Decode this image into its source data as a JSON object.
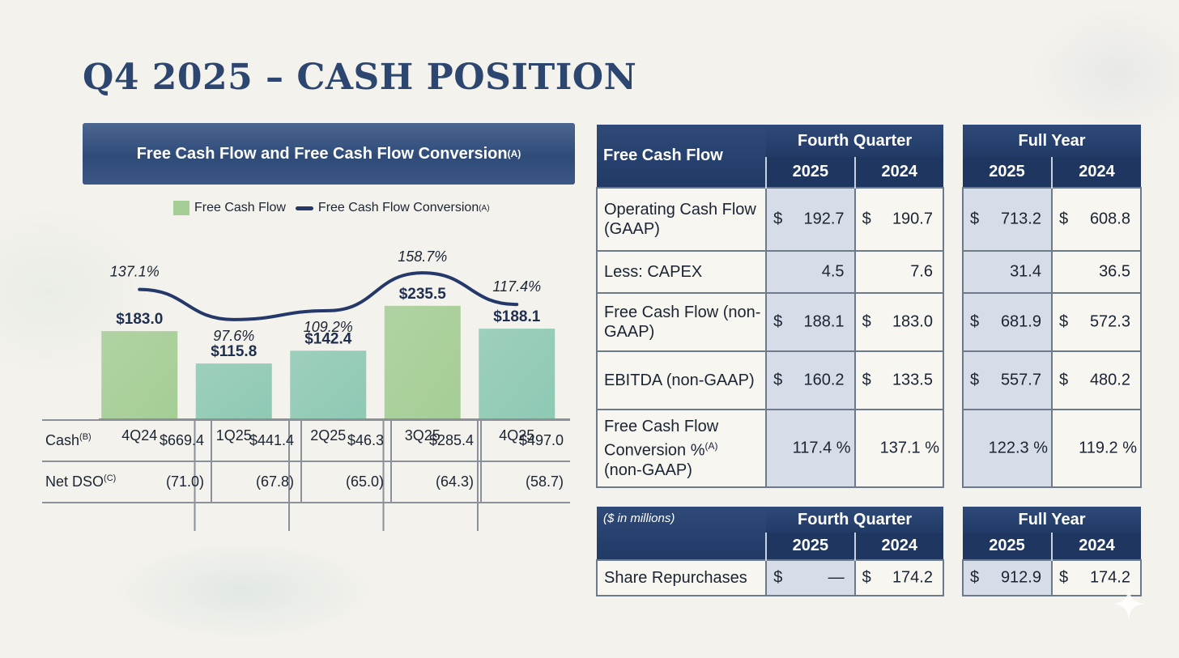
{
  "title": "Q4 2025 – CASH POSITION",
  "colors": {
    "bar": "#a5cd96",
    "bar_alt": "#8ec9b4",
    "line": "#24396a",
    "header": "#24406c"
  },
  "chart_data": {
    "type": "bar",
    "title": "Free Cash Flow and Free Cash Flow Conversion",
    "title_superscript": "(A)",
    "categories": [
      "4Q24",
      "1Q25",
      "2Q25",
      "3Q25",
      "4Q25"
    ],
    "series": [
      {
        "name": "Free Cash Flow",
        "type": "bar",
        "values": [
          183.0,
          115.8,
          142.4,
          235.5,
          188.1
        ],
        "labels": [
          "$183.0",
          "$115.8",
          "$142.4",
          "$235.5",
          "$188.1"
        ]
      },
      {
        "name": "Free Cash Flow Conversion",
        "name_superscript": "(A)",
        "type": "line",
        "values": [
          137.1,
          97.6,
          109.2,
          158.7,
          117.4
        ],
        "labels": [
          "137.1%",
          "97.6%",
          "109.2%",
          "158.7%",
          "117.4%"
        ]
      }
    ],
    "legend": "top",
    "grid": false
  },
  "stats_table": {
    "rows": [
      {
        "label": "Cash",
        "sup": "(B)",
        "values": [
          "$669.4",
          "$441.4",
          "$46.3",
          "$285.4",
          "$497.0"
        ]
      },
      {
        "label": "Net DSO",
        "sup": "(C)",
        "values": [
          "(71.0)",
          "(67.8)",
          "(65.0)",
          "(64.3)",
          "(58.7)"
        ]
      }
    ]
  },
  "fcf_table": {
    "header_label": "Free Cash Flow",
    "q_group": "Fourth Quarter",
    "y_group": "Full Year",
    "years": [
      "2025",
      "2024"
    ],
    "rows": [
      {
        "label": "Operating Cash Flow (GAAP)",
        "q2025": "192.7",
        "q2024": "190.7",
        "y2025": "713.2",
        "y2024": "608.8",
        "currency": "$"
      },
      {
        "label": "Less: CAPEX",
        "q2025": "4.5",
        "q2024": "7.6",
        "y2025": "31.4",
        "y2024": "36.5",
        "currency": ""
      },
      {
        "label": "Free Cash Flow (non-GAAP)",
        "q2025": "188.1",
        "q2024": "183.0",
        "y2025": "681.9",
        "y2024": "572.3",
        "currency": "$"
      },
      {
        "label": "EBITDA (non-GAAP)",
        "q2025": "160.2",
        "q2024": "133.5",
        "y2025": "557.7",
        "y2024": "480.2",
        "currency": "$"
      },
      {
        "label": "Free Cash Flow Conversion %",
        "label_sup": "(A)",
        "label_suffix": "(non-GAAP)",
        "q2025": "117.4 %",
        "q2024": "137.1 %",
        "y2025": "122.3 %",
        "y2024": "119.2 %",
        "currency": ""
      }
    ]
  },
  "repurchase_table": {
    "note": "($ in millions)",
    "q_group": "Fourth Quarter",
    "y_group": "Full Year",
    "years": [
      "2025",
      "2024"
    ],
    "row": {
      "label": "Share Repurchases",
      "currency": "$",
      "q2025": "—",
      "q2024": "174.2",
      "y2025": "912.9",
      "y2024": "174.2"
    }
  }
}
